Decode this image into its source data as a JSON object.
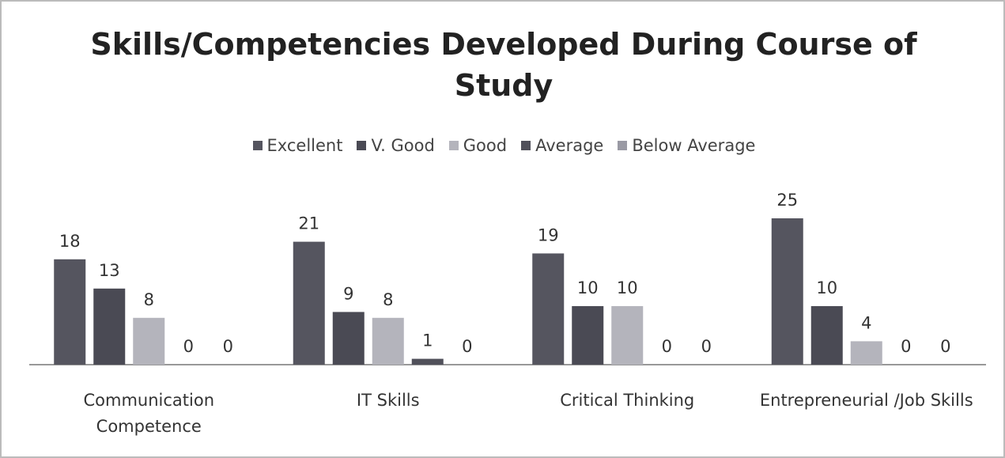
{
  "chart_data": {
    "type": "bar",
    "title": "Skills/Competencies Developed During Course of Study",
    "categories": [
      "Communication Competence",
      "IT Skills",
      "Critical Thinking",
      "Entrepreneurial /Job Skills"
    ],
    "series": [
      {
        "name": "Excellent",
        "color": "#55555f",
        "values": [
          18,
          21,
          19,
          25
        ]
      },
      {
        "name": "V. Good",
        "color": "#4a4a54",
        "values": [
          13,
          9,
          10,
          10
        ]
      },
      {
        "name": "Good",
        "color": "#b4b4bc",
        "values": [
          8,
          8,
          10,
          4
        ]
      },
      {
        "name": "Average",
        "color": "#50505a",
        "values": [
          0,
          1,
          0,
          0
        ]
      },
      {
        "name": "Below Average",
        "color": "#9a9aa4",
        "values": [
          0,
          0,
          0,
          0
        ]
      }
    ],
    "legend": "top"
  }
}
